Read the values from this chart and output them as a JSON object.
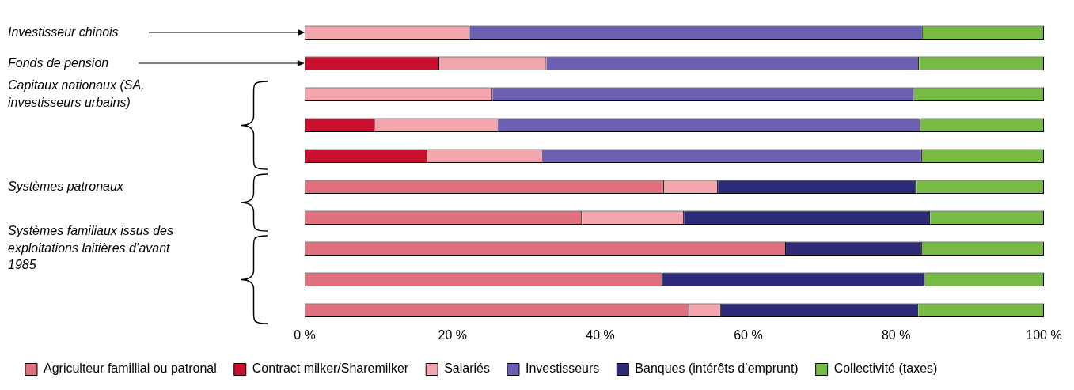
{
  "chart_data": {
    "type": "bar",
    "orientation": "horizontal",
    "stacked": true,
    "categories": [
      "Investisseur chinois",
      "Fonds de pension",
      "Capitaux nationaux (SA, investisseurs urbains)",
      null,
      null,
      "Systèmes patronaux",
      null,
      "Systèmes familiaux issus des exploitations laitières d’avant 1985",
      null,
      null
    ],
    "series": [
      {
        "name": "Agriculteur famillial ou patronal",
        "color": "#e0707e",
        "values": [
          null,
          null,
          null,
          null,
          null,
          48.6,
          37.5,
          65.1,
          48.4,
          52.0
        ]
      },
      {
        "name": "Contract milker/Sharemilker",
        "color": "#c8102e",
        "values": [
          null,
          18.2,
          null,
          9.5,
          16.6,
          null,
          null,
          null,
          null,
          null
        ]
      },
      {
        "name": "Salariés",
        "color": "#f4a6ae",
        "values": [
          22.3,
          14.5,
          25.4,
          16.7,
          15.6,
          7.3,
          13.8,
          null,
          null,
          4.3
        ]
      },
      {
        "name": "Investisseurs",
        "color": "#6a5fb0",
        "values": [
          61.3,
          50.4,
          57.0,
          57.1,
          51.3,
          null,
          null,
          null,
          null,
          null
        ]
      },
      {
        "name": "Banques (intérêts d’emprunt)",
        "color": "#2e2a7a",
        "values": [
          null,
          null,
          null,
          null,
          null,
          26.8,
          33.3,
          18.4,
          35.5,
          26.7
        ]
      },
      {
        "name": "Collectivité (taxes)",
        "color": "#77bb44",
        "values": [
          16.4,
          16.9,
          17.6,
          16.7,
          16.5,
          17.3,
          15.4,
          16.5,
          16.1,
          17.0
        ]
      }
    ],
    "xlim": [
      0,
      100
    ],
    "xticks": [
      {
        "value": 0,
        "label": "0 %"
      },
      {
        "value": 20,
        "label": "20 %"
      },
      {
        "value": 40,
        "label": "40 %"
      },
      {
        "value": 60,
        "label": "60 %"
      },
      {
        "value": 80,
        "label": "80 %"
      },
      {
        "value": 100,
        "label": "100 %"
      }
    ],
    "grid": false,
    "legend": "bottom"
  }
}
